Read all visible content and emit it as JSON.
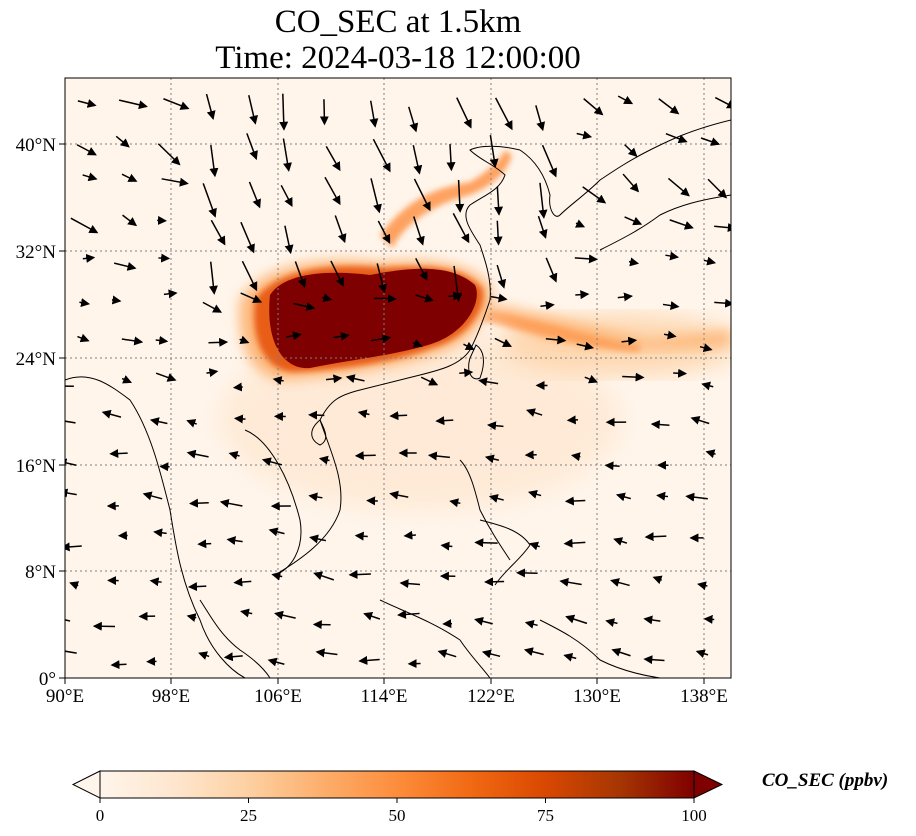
{
  "title": {
    "line1": "CO_SEC at 1.5km",
    "line2": "Time: 2024-03-18 12:00:00"
  },
  "map": {
    "lon_range": [
      90,
      140
    ],
    "lat_range": [
      0,
      44
    ],
    "lon_ticks": [
      "90°E",
      "98°E",
      "106°E",
      "114°E",
      "122°E",
      "130°E",
      "138°E"
    ],
    "lat_ticks": [
      "0°",
      "8°N",
      "16°N",
      "24°N",
      "32°N",
      "40°N"
    ],
    "gridlines": true,
    "features": [
      "coastlines",
      "country-borders",
      "wind-vectors"
    ],
    "plume_colors": {
      "background": "#fff5eb",
      "low": "#fee6ce",
      "mid": "#fdae6b",
      "high": "#e6550d",
      "max": "#7f0000"
    }
  },
  "colorbar": {
    "label": "CO_SEC (ppbv)",
    "ticks": [
      "0",
      "25",
      "50",
      "75",
      "100"
    ],
    "range": [
      0,
      100
    ],
    "colormap": [
      "#fff5eb",
      "#fee6ce",
      "#fdd0a2",
      "#fdae6b",
      "#fd8d3c",
      "#f16913",
      "#d94801",
      "#a63603",
      "#7f0000"
    ],
    "extend": "both"
  }
}
